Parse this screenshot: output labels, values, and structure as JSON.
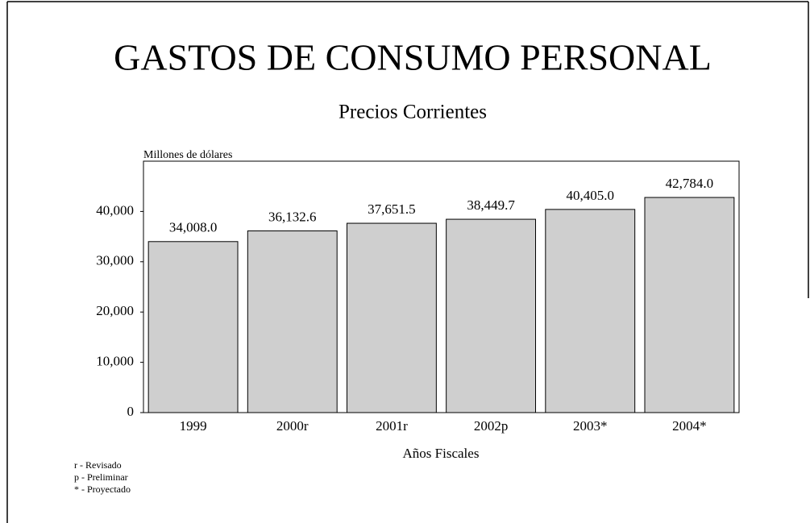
{
  "chart_data": {
    "type": "bar",
    "title": "GASTOS DE CONSUMO PERSONAL",
    "subtitle": "Precios Corrientes",
    "y_label": "Millones de dólares",
    "x_label": "Años Fiscales",
    "categories": [
      "1999",
      "2000r",
      "2001r",
      "2002p",
      "2003*",
      "2004*"
    ],
    "values": [
      34008.0,
      36132.6,
      37651.5,
      38449.7,
      40405.0,
      42784.0
    ],
    "value_labels": [
      "34,008.0",
      "36,132.6",
      "37,651.5",
      "38,449.7",
      "40,405.0",
      "42,784.0"
    ],
    "color": "#cfcfcf",
    "ylim": [
      0,
      50000
    ],
    "yticks": [
      0,
      {
        "value": 10000,
        "label": "10,000"
      },
      {
        "value": 20000,
        "label": "20,000"
      },
      {
        "value": 30000,
        "label": "30,000"
      },
      {
        "value": 40000,
        "label": "40,000"
      }
    ],
    "grid": false,
    "notes": [
      "r - Revisado",
      "p - Preliminar",
      "* - Proyectado"
    ]
  }
}
